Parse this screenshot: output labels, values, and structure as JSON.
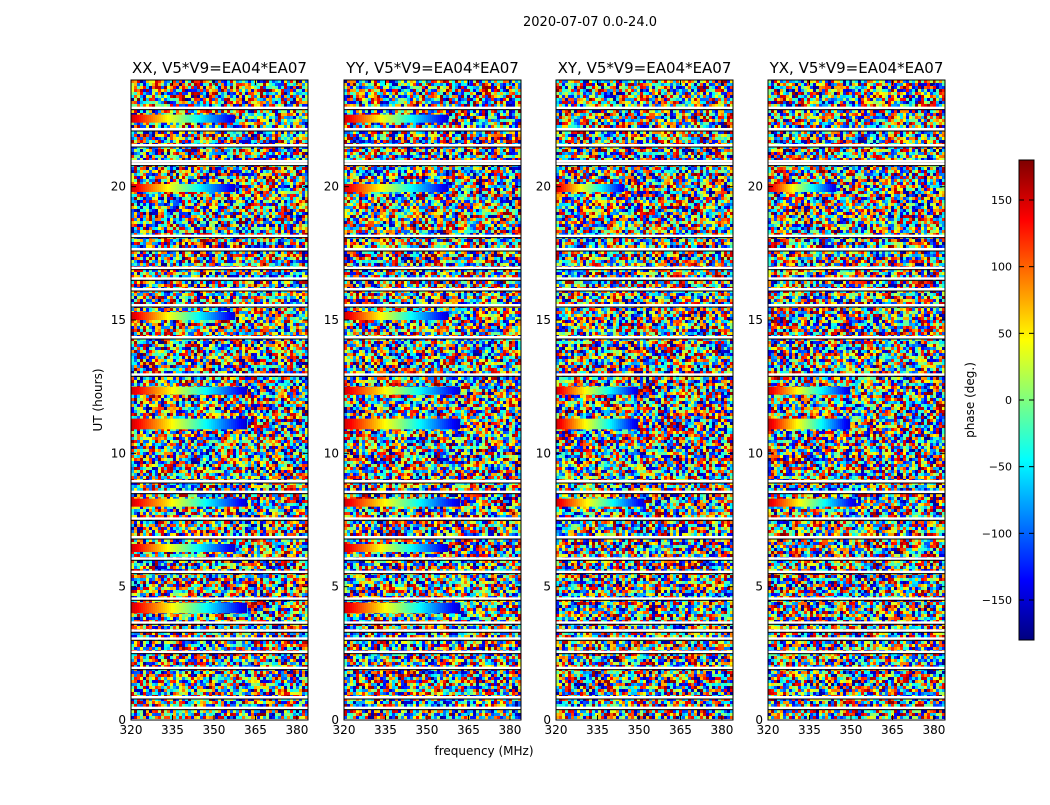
{
  "chart_data": {
    "type": "heatmap",
    "suptitle": "2020-07-07 0.0-24.0",
    "xlabel": "frequency (MHz)",
    "ylabel": "UT (hours)",
    "xlim": [
      320,
      384
    ],
    "ylim": [
      0,
      24
    ],
    "xticks": [
      320,
      335,
      350,
      365,
      380
    ],
    "yticks": [
      0,
      5,
      10,
      15,
      20
    ],
    "panels": [
      {
        "title": "XX, V5*V9=EA04*EA07",
        "coherent_bands": [
          {
            "ut_start": 4.0,
            "ut_end": 4.4,
            "freq_end": 362
          },
          {
            "ut_start": 6.3,
            "ut_end": 6.6,
            "freq_end": 358
          },
          {
            "ut_start": 8.0,
            "ut_end": 8.3,
            "freq_end": 362
          },
          {
            "ut_start": 10.9,
            "ut_end": 11.3,
            "freq_end": 362
          },
          {
            "ut_start": 12.2,
            "ut_end": 12.5,
            "freq_end": 362
          },
          {
            "ut_start": 15.0,
            "ut_end": 15.3,
            "freq_end": 358
          },
          {
            "ut_start": 19.8,
            "ut_end": 20.1,
            "freq_end": 358
          },
          {
            "ut_start": 22.4,
            "ut_end": 22.7,
            "freq_end": 358
          }
        ]
      },
      {
        "title": "YY, V5*V9=EA04*EA07",
        "coherent_bands": [
          {
            "ut_start": 4.0,
            "ut_end": 4.4,
            "freq_end": 362
          },
          {
            "ut_start": 6.3,
            "ut_end": 6.6,
            "freq_end": 358
          },
          {
            "ut_start": 8.0,
            "ut_end": 8.3,
            "freq_end": 362
          },
          {
            "ut_start": 10.9,
            "ut_end": 11.3,
            "freq_end": 362
          },
          {
            "ut_start": 12.2,
            "ut_end": 12.5,
            "freq_end": 362
          },
          {
            "ut_start": 15.0,
            "ut_end": 15.3,
            "freq_end": 358
          },
          {
            "ut_start": 19.8,
            "ut_end": 20.1,
            "freq_end": 358
          },
          {
            "ut_start": 22.4,
            "ut_end": 22.7,
            "freq_end": 358
          }
        ]
      },
      {
        "title": "XY, V5*V9=EA04*EA07",
        "coherent_bands": [
          {
            "ut_start": 8.0,
            "ut_end": 8.3,
            "freq_end": 352
          },
          {
            "ut_start": 10.9,
            "ut_end": 11.3,
            "freq_end": 350
          },
          {
            "ut_start": 12.2,
            "ut_end": 12.5,
            "freq_end": 350
          },
          {
            "ut_start": 19.8,
            "ut_end": 20.1,
            "freq_end": 345
          }
        ]
      },
      {
        "title": "YX, V5*V9=EA04*EA07",
        "coherent_bands": [
          {
            "ut_start": 8.0,
            "ut_end": 8.3,
            "freq_end": 352
          },
          {
            "ut_start": 10.9,
            "ut_end": 11.3,
            "freq_end": 350
          },
          {
            "ut_start": 12.2,
            "ut_end": 12.5,
            "freq_end": 350
          },
          {
            "ut_start": 19.8,
            "ut_end": 20.1,
            "freq_end": 345
          }
        ]
      }
    ],
    "colorbar": {
      "label": "phase (deg.)",
      "range": [
        -180,
        180
      ],
      "ticks": [
        150,
        100,
        50,
        0,
        -50,
        -100,
        -150
      ],
      "tick_labels": [
        "150",
        "100",
        "50",
        "0",
        "−50",
        "−100",
        "−150"
      ],
      "colormap": "jet",
      "colors": [
        "#00007f",
        "#0000ff",
        "#007fff",
        "#00ffff",
        "#7fff7f",
        "#ffff00",
        "#ff7f00",
        "#ff0000",
        "#7f0000"
      ]
    },
    "blank_rows_ut": [
      23.0,
      22.2,
      21.6,
      21.0,
      20.9,
      18.2,
      17.7,
      17.0,
      16.6,
      16.2,
      15.6,
      14.4,
      13.0,
      9.0,
      8.6,
      7.6,
      6.9,
      6.1,
      5.6,
      4.6,
      3.7,
      3.4,
      3.1,
      2.6,
      2.0,
      0.9,
      0.5
    ]
  }
}
